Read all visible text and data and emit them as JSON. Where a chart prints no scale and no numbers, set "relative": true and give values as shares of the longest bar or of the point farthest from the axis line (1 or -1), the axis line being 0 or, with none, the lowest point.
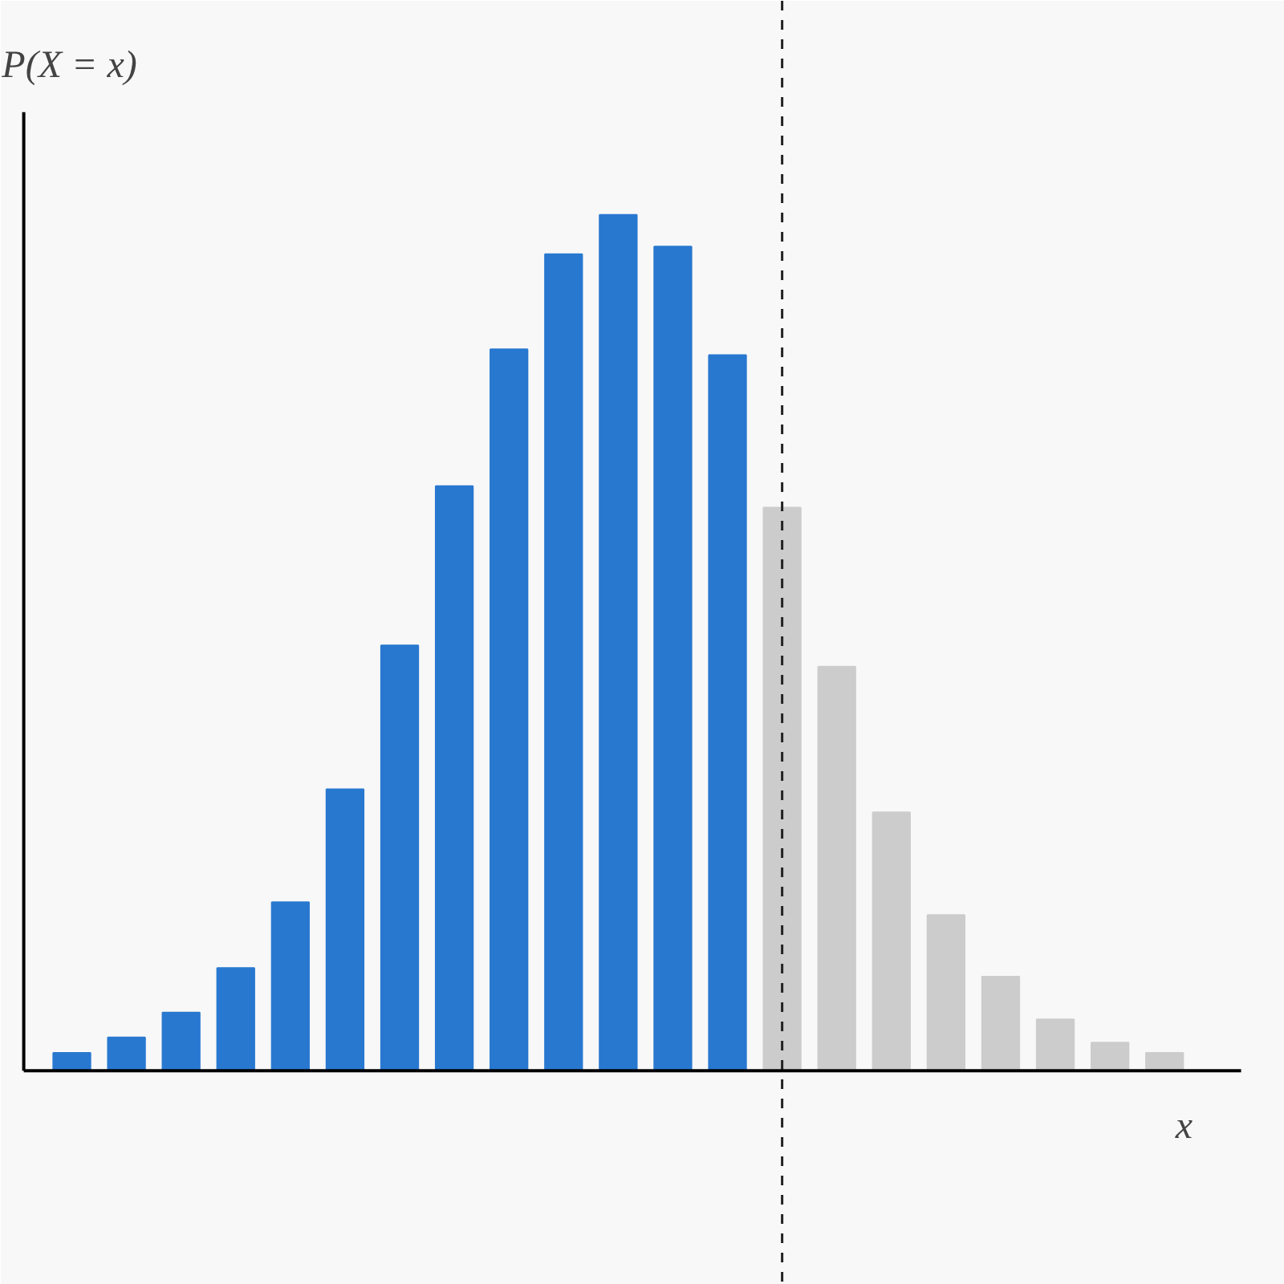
{
  "chart_data": {
    "type": "bar",
    "relative": true,
    "xlabel": "x",
    "ylabel": "P(X = x)",
    "categories": [
      null,
      null,
      null,
      null,
      null,
      null,
      null,
      null,
      null,
      null,
      null,
      null,
      null,
      null,
      null,
      null,
      null,
      null,
      null,
      null,
      null
    ],
    "values": [
      0.021,
      0.039,
      0.068,
      0.12,
      0.197,
      0.329,
      0.497,
      0.683,
      0.843,
      0.954,
      1,
      0.963,
      0.836,
      0.658,
      0.472,
      0.302,
      0.182,
      0.11,
      0.06,
      0.033,
      0.021
    ],
    "colors": [
      "#2878d0",
      "#2878d0",
      "#2878d0",
      "#2878d0",
      "#2878d0",
      "#2878d0",
      "#2878d0",
      "#2878d0",
      "#2878d0",
      "#2878d0",
      "#2878d0",
      "#2878d0",
      "#2878d0",
      "#cccccc",
      "#cccccc",
      "#cccccc",
      "#cccccc",
      "#cccccc",
      "#cccccc",
      "#cccccc",
      "#cccccc"
    ],
    "grid": false,
    "tick_labels": false
  }
}
